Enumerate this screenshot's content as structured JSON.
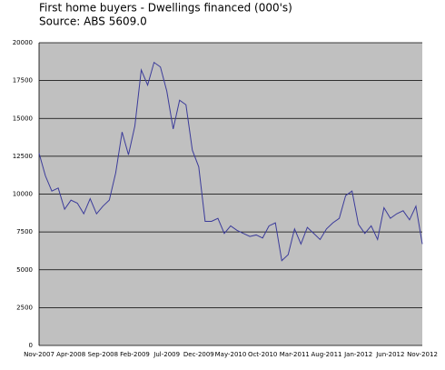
{
  "chart_data": {
    "type": "line",
    "title": "First home buyers - Dwellings financed (000's)",
    "subtitle": "Source: ABS 5609.0",
    "categories": [
      "Nov-2007",
      null,
      null,
      null,
      null,
      "Apr-2008",
      null,
      null,
      null,
      null,
      "Sep-2008",
      null,
      null,
      null,
      null,
      "Feb-2009",
      null,
      null,
      null,
      null,
      "Jul-2009",
      null,
      null,
      null,
      null,
      "Dec-2009",
      null,
      null,
      null,
      null,
      "May-2010",
      null,
      null,
      null,
      null,
      "Oct-2010",
      null,
      null,
      null,
      null,
      "Mar-2011",
      null,
      null,
      null,
      null,
      "Aug-2011",
      null,
      null,
      null,
      null,
      "Jan-2012",
      null,
      null,
      null,
      null,
      "Jun-2012",
      null,
      null,
      null,
      null,
      "Nov-2012"
    ],
    "series": [
      {
        "color": "#3b3b9a",
        "values": [
          12700,
          11200,
          10200,
          10400,
          9000,
          9600,
          9400,
          8700,
          9700,
          8700,
          9200,
          9600,
          11400,
          14100,
          12600,
          14500,
          18200,
          17200,
          18700,
          18400,
          16800,
          14300,
          16200,
          15900,
          12900,
          11800,
          8200,
          8200,
          8400,
          7400,
          7900,
          7600,
          7400,
          7200,
          7300,
          7100,
          7900,
          8100,
          5600,
          6000,
          7700,
          6700,
          7800,
          7400,
          7000,
          7700,
          8100,
          8400,
          9900,
          10200,
          8000,
          7400,
          7900,
          7000,
          9100,
          8400,
          8700,
          8900,
          8300,
          9200,
          6700
        ]
      }
    ],
    "ylim": [
      0,
      20000
    ],
    "yticks": [
      0,
      2500,
      5000,
      7500,
      10000,
      12500,
      15000,
      17500,
      20000
    ],
    "grid": true,
    "background": "#c0c0c0"
  }
}
